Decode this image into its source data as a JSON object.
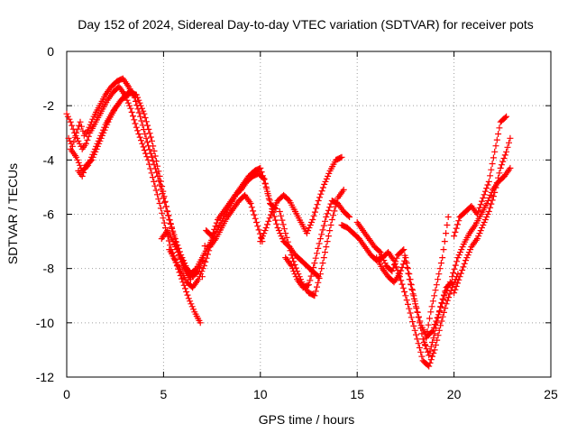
{
  "chart_data": {
    "type": "scatter",
    "title": "Day 152 of 2024, Sidereal Day-to-day VTEC variation (SDTVAR) for receiver pots",
    "xlabel": "GPS time / hours",
    "ylabel": "SDTVAR / TECUs",
    "xlim": [
      0,
      25
    ],
    "ylim": [
      -12,
      0
    ],
    "xticks": [
      0,
      5,
      10,
      15,
      20,
      25
    ],
    "yticks": [
      0,
      -2,
      -4,
      -6,
      -8,
      -10,
      -12
    ],
    "grid": true,
    "marker": "+",
    "color": "#ff0000",
    "series": [
      {
        "name": "track-1",
        "x": [
          0.0,
          0.2,
          0.4,
          0.6,
          0.8,
          1.0,
          1.2,
          1.5,
          1.8,
          2.1,
          2.4,
          2.7,
          3.0,
          3.3,
          3.6,
          3.9,
          4.2,
          4.5,
          4.8,
          5.1,
          5.4,
          5.7,
          6.0,
          6.3,
          6.6,
          6.9
        ],
        "y": [
          -2.3,
          -2.6,
          -3.0,
          -3.3,
          -3.6,
          -3.4,
          -3.0,
          -2.6,
          -2.2,
          -1.8,
          -1.5,
          -1.3,
          -1.6,
          -2.1,
          -2.8,
          -3.4,
          -4.0,
          -4.8,
          -5.6,
          -6.5,
          -7.3,
          -7.9,
          -8.5,
          -9.1,
          -9.6,
          -10.0
        ]
      },
      {
        "name": "track-2",
        "x": [
          0.1,
          0.3,
          0.5,
          0.7,
          0.9,
          1.1,
          1.4,
          1.7,
          2.0,
          2.3,
          2.6,
          2.9,
          3.2,
          3.5,
          3.8,
          4.1,
          4.4,
          4.7,
          5.0,
          5.3,
          5.6,
          5.9,
          6.2,
          6.5,
          6.8,
          7.0
        ],
        "y": [
          -3.2,
          -3.5,
          -3.0,
          -2.6,
          -3.1,
          -2.9,
          -2.4,
          -2.0,
          -1.6,
          -1.3,
          -1.1,
          -1.0,
          -1.3,
          -1.7,
          -2.4,
          -3.2,
          -3.9,
          -4.6,
          -5.4,
          -6.2,
          -6.9,
          -7.5,
          -8.0,
          -8.3,
          -8.1,
          -7.7
        ]
      },
      {
        "name": "track-3",
        "x": [
          0.2,
          0.5,
          0.8,
          1.1,
          1.4,
          1.7,
          2.0,
          2.4,
          2.8,
          3.2,
          3.6,
          4.0,
          4.4,
          4.8,
          5.2,
          5.6,
          6.0,
          6.4
        ],
        "y": [
          -3.6,
          -3.9,
          -4.4,
          -4.2,
          -3.7,
          -3.2,
          -2.7,
          -2.2,
          -1.8,
          -1.5,
          -1.6,
          -2.3,
          -3.3,
          -4.6,
          -5.9,
          -7.0,
          -7.9,
          -8.4
        ]
      },
      {
        "name": "track-4",
        "x": [
          0.6,
          0.8,
          1.0,
          1.3,
          1.6,
          1.9,
          2.2,
          2.5,
          2.8,
          3.1,
          3.4
        ],
        "y": [
          -4.4,
          -4.6,
          -4.2,
          -4.0,
          -3.5,
          -3.0,
          -2.5,
          -2.1,
          -1.8,
          -1.6,
          -1.5
        ]
      },
      {
        "name": "track-5",
        "x": [
          4.9,
          5.2,
          5.5,
          5.8,
          6.1,
          6.4,
          6.7,
          7.0,
          7.3,
          7.6,
          7.9,
          8.2,
          8.5,
          8.8,
          9.1,
          9.4,
          9.7,
          10.0,
          10.3,
          10.6,
          10.9,
          11.2,
          11.5,
          11.8,
          12.1,
          12.4,
          12.7,
          13.0
        ],
        "y": [
          -6.9,
          -6.6,
          -7.0,
          -7.5,
          -7.9,
          -8.2,
          -8.0,
          -7.6,
          -7.2,
          -6.8,
          -6.4,
          -6.0,
          -5.6,
          -5.2,
          -4.9,
          -4.6,
          -4.4,
          -4.3,
          -5.0,
          -5.8,
          -6.5,
          -7.0,
          -7.2,
          -7.5,
          -7.7,
          -7.9,
          -8.1,
          -8.3
        ]
      },
      {
        "name": "track-6",
        "x": [
          5.3,
          5.6,
          5.9,
          6.2,
          6.5,
          6.8,
          7.1,
          7.4,
          7.7,
          8.0,
          8.3,
          8.6,
          8.9,
          9.2,
          9.5,
          9.8,
          10.1
        ],
        "y": [
          -7.3,
          -7.7,
          -8.1,
          -8.5,
          -8.7,
          -8.4,
          -7.9,
          -7.2,
          -6.9,
          -6.5,
          -6.1,
          -5.8,
          -5.5,
          -5.3,
          -5.6,
          -6.3,
          -7.0
        ]
      },
      {
        "name": "track-7",
        "x": [
          7.0,
          7.2,
          7.5,
          7.8,
          8.1,
          8.4,
          8.7,
          9.0,
          9.3,
          9.6,
          9.9,
          10.2,
          10.5,
          10.8
        ],
        "y": [
          -8.3,
          -6.6,
          -6.8,
          -6.2,
          -5.9,
          -5.6,
          -5.3,
          -5.1,
          -4.8,
          -4.6,
          -4.5,
          -4.7,
          -5.6,
          -5.8
        ]
      },
      {
        "name": "track-8",
        "x": [
          10.0,
          10.3,
          10.6,
          10.9,
          11.2,
          11.5,
          11.8,
          12.1,
          12.4,
          12.7,
          13.0,
          13.3,
          13.6,
          13.9,
          14.2
        ],
        "y": [
          -7.0,
          -6.5,
          -5.9,
          -5.5,
          -5.3,
          -5.5,
          -5.9,
          -6.3,
          -6.7,
          -6.2,
          -5.5,
          -4.9,
          -4.4,
          -4.0,
          -3.9
        ]
      },
      {
        "name": "track-9",
        "x": [
          11.0,
          11.3,
          11.6,
          11.9,
          12.2,
          12.5,
          12.8,
          13.1,
          13.4,
          13.7,
          14.0,
          14.3
        ],
        "y": [
          -5.9,
          -6.7,
          -7.5,
          -8.1,
          -8.6,
          -8.9,
          -9.0,
          -8.2,
          -7.2,
          -6.2,
          -5.4,
          -5.1
        ]
      },
      {
        "name": "track-10",
        "x": [
          11.3,
          11.6,
          11.9,
          12.2,
          12.5,
          12.8,
          13.1,
          13.4,
          13.7,
          14.0,
          14.3,
          14.6
        ],
        "y": [
          -7.6,
          -7.9,
          -8.4,
          -8.7,
          -8.6,
          -7.8,
          -6.9,
          -6.1,
          -5.5,
          -5.6,
          -5.9,
          -6.1
        ]
      },
      {
        "name": "track-11",
        "x": [
          14.2,
          14.5,
          14.8,
          15.1,
          15.4,
          15.7,
          16.0,
          16.3,
          16.6,
          16.9,
          17.2,
          17.5,
          17.8,
          18.1,
          18.4,
          18.7,
          19.0,
          19.3,
          19.6,
          19.9,
          20.2
        ],
        "y": [
          -6.4,
          -6.5,
          -6.7,
          -6.9,
          -7.2,
          -7.5,
          -7.7,
          -7.6,
          -7.4,
          -7.7,
          -8.3,
          -9.0,
          -9.8,
          -10.6,
          -11.4,
          -11.6,
          -11.0,
          -10.1,
          -9.3,
          -8.7,
          -8.2
        ]
      },
      {
        "name": "track-12",
        "x": [
          15.0,
          15.3,
          15.6,
          15.9,
          16.2,
          16.5,
          16.8,
          17.1,
          17.4,
          17.7,
          18.0,
          18.3,
          18.6,
          18.9,
          19.2,
          19.5,
          19.8
        ],
        "y": [
          -6.3,
          -6.6,
          -6.9,
          -7.2,
          -7.4,
          -7.9,
          -8.1,
          -7.5,
          -7.3,
          -8.4,
          -9.3,
          -10.1,
          -10.5,
          -10.3,
          -9.7,
          -9.0,
          -8.5
        ]
      },
      {
        "name": "track-13",
        "x": [
          16.0,
          16.3,
          16.6,
          16.9,
          17.2,
          17.5,
          17.8,
          18.1,
          18.4,
          18.7,
          19.0,
          19.3,
          19.6,
          19.9
        ],
        "y": [
          -7.6,
          -8.0,
          -8.3,
          -8.5,
          -8.2,
          -7.6,
          -8.6,
          -9.6,
          -10.6,
          -11.2,
          -10.4,
          -9.4,
          -8.7,
          -8.5
        ]
      },
      {
        "name": "track-14",
        "x": [
          18.5,
          18.8,
          19.1,
          19.4,
          19.7
        ],
        "y": [
          -10.8,
          -9.6,
          -8.6,
          -7.6,
          -6.1
        ]
      },
      {
        "name": "track-15",
        "x": [
          19.9,
          20.2,
          20.5,
          20.8,
          21.1,
          21.4,
          21.7,
          22.0,
          22.3,
          22.6,
          22.9
        ],
        "y": [
          -8.3,
          -7.6,
          -7.1,
          -6.7,
          -6.4,
          -6.0,
          -5.6,
          -5.1,
          -4.8,
          -4.6,
          -4.3
        ]
      },
      {
        "name": "track-16",
        "x": [
          20.0,
          20.3,
          20.6,
          20.9,
          21.2,
          21.5,
          21.8,
          22.1,
          22.4,
          22.7
        ],
        "y": [
          -6.8,
          -6.1,
          -5.9,
          -5.7,
          -6.0,
          -5.4,
          -4.8,
          -3.7,
          -2.6,
          -2.4
        ]
      },
      {
        "name": "track-17",
        "x": [
          20.0,
          20.3,
          20.6,
          20.9,
          21.2,
          21.5,
          21.8,
          22.1,
          22.4,
          22.7,
          22.9
        ],
        "y": [
          -8.9,
          -8.3,
          -7.7,
          -7.2,
          -6.9,
          -6.4,
          -5.9,
          -5.2,
          -4.3,
          -3.7,
          -3.2
        ]
      }
    ]
  }
}
